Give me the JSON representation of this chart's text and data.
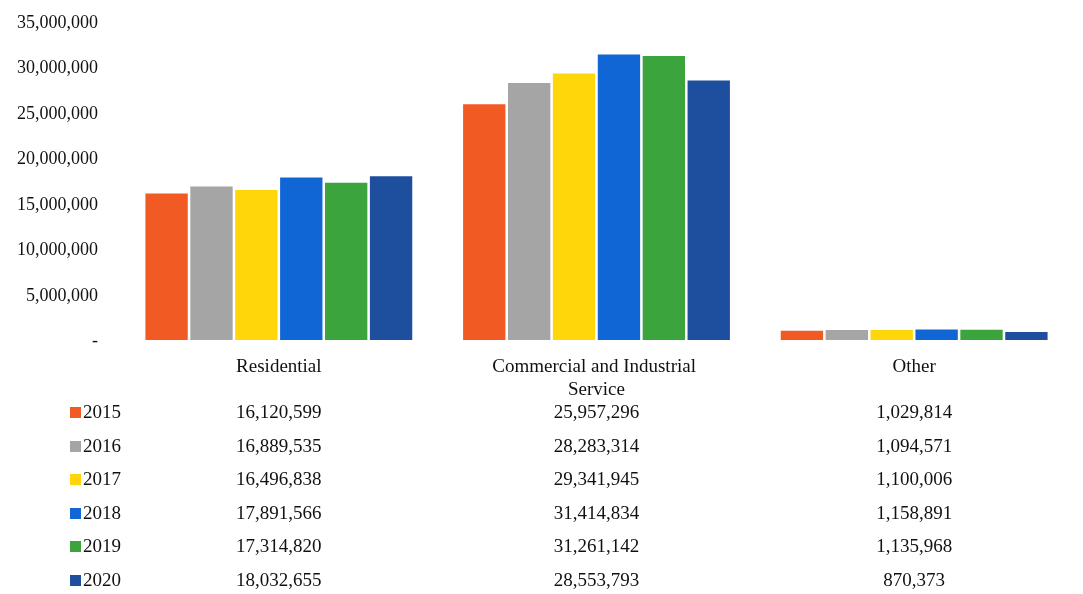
{
  "chart_data": {
    "type": "bar",
    "categories": [
      "Residential",
      "Commercial and Industrial Service",
      "Other"
    ],
    "series": [
      {
        "name": "2015",
        "color": "#f25a24",
        "values": [
          16120599,
          25957296,
          1029814
        ],
        "value_labels": [
          "16,120,599",
          "25,957,296",
          "1,029,814"
        ]
      },
      {
        "name": "2016",
        "color": "#a5a5a5",
        "values": [
          16889535,
          28283314,
          1094571
        ],
        "value_labels": [
          "16,889,535",
          "28,283,314",
          "1,094,571"
        ]
      },
      {
        "name": "2017",
        "color": "#ffd60a",
        "values": [
          16496838,
          29341945,
          1100006
        ],
        "value_labels": [
          "16,496,838",
          "29,341,945",
          "1,100,006"
        ]
      },
      {
        "name": "2018",
        "color": "#1166d6",
        "values": [
          17891566,
          31414834,
          1158891
        ],
        "value_labels": [
          "17,891,566",
          "31,414,834",
          "1,158,891"
        ]
      },
      {
        "name": "2019",
        "color": "#3ca43c",
        "values": [
          17314820,
          31261142,
          1135968
        ],
        "value_labels": [
          "17,314,820",
          "31,261,142",
          "1,135,968"
        ]
      },
      {
        "name": "2020",
        "color": "#1d4f9e",
        "values": [
          18032655,
          28553793,
          870373
        ],
        "value_labels": [
          "18,032,655",
          "28,553,793",
          "870,373"
        ]
      }
    ],
    "ylim": [
      0,
      35000000
    ],
    "yticks": [
      {
        "value": 0,
        "label": "-"
      },
      {
        "value": 5000000,
        "label": "5,000,000"
      },
      {
        "value": 10000000,
        "label": "10,000,000"
      },
      {
        "value": 15000000,
        "label": "15,000,000"
      },
      {
        "value": 20000000,
        "label": "20,000,000"
      },
      {
        "value": 25000000,
        "label": "25,000,000"
      },
      {
        "value": 30000000,
        "label": "30,000,000"
      },
      {
        "value": 35000000,
        "label": "35,000,000"
      }
    ],
    "legend": "bottom left"
  }
}
